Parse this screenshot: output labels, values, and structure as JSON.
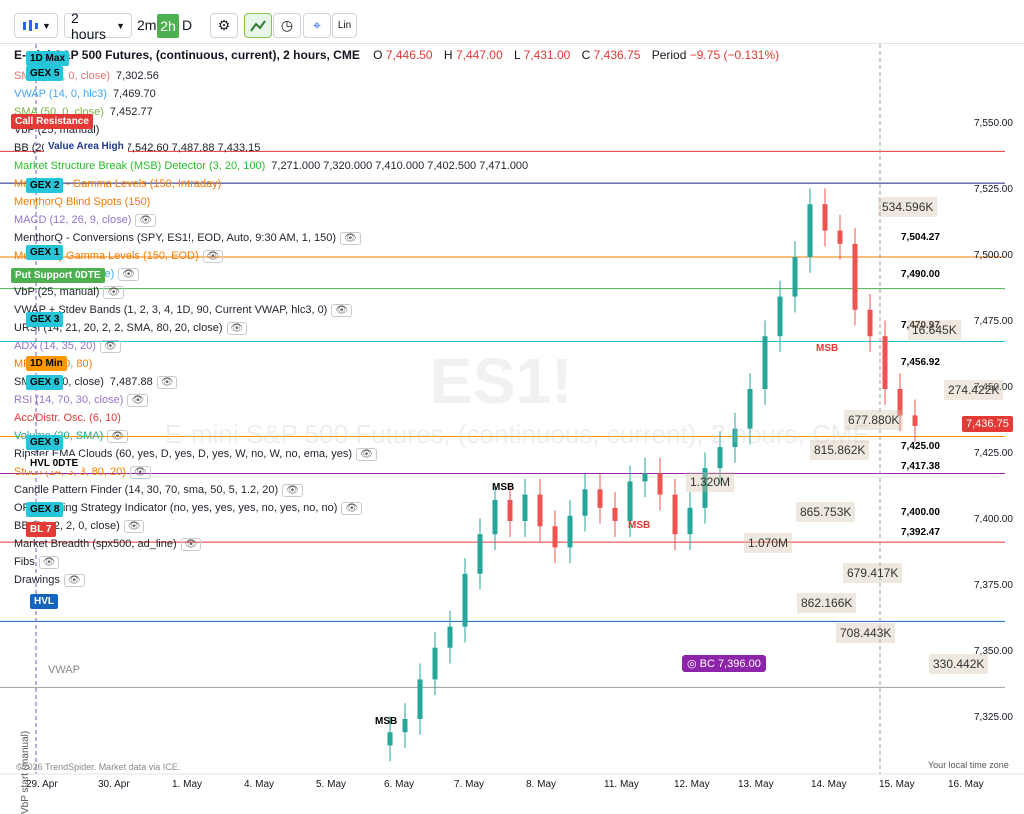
{
  "toolbar": {
    "timeframe": "2 hours",
    "tf_2m": "2m",
    "tf_2h": "2h",
    "tf_d": "D",
    "log_label": "Lin"
  },
  "header": {
    "title": "E-mini S&P 500 Futures, (continuous, current), 2 hours, CME",
    "o_label": "O",
    "o": "7,446.50",
    "h_label": "H",
    "h": "7,447.00",
    "l_label": "L",
    "l": "7,431.00",
    "c_label": "C",
    "c": "7,436.75",
    "period_label": "Period",
    "period": "−9.75 (−0.131%)"
  },
  "indicators": [
    {
      "name": "SMA (200, 0, close)",
      "value": "7,302.56",
      "color": "#e57373"
    },
    {
      "name": "VWAP (14, 0, hlc3)",
      "value": "7,469.70",
      "color": "#42a5f5"
    },
    {
      "name": "SMA (50, 0, close)",
      "value": "7,452.77",
      "color": "#7cb342"
    },
    {
      "name": "VbP (25, manual)",
      "value": "",
      "color": "#1e222d"
    },
    {
      "name": "BB (20, 2, 2, 0, close)",
      "value": "7,542.60  7,487.88  7,433.15",
      "color": "#1e222d"
    },
    {
      "name": "Market Structure Break (MSB) Detector (3, 20, 100)",
      "value": "7,271.000  7,320.000  7,410.000  7,402.500  7,471.000",
      "color": "#2bbd2b"
    },
    {
      "name": "MenthorQ - Gamma Levels (150, Intraday)",
      "value": "",
      "color": "#f57c00"
    },
    {
      "name": "MenthorQ Blind Spots (150)",
      "value": "",
      "color": "#f57c00"
    },
    {
      "name": "MACD (12, 26, 9, close)",
      "value": "",
      "color": "#9575cd"
    },
    {
      "name": "MenthorQ - Conversions (SPY, ES1!, EOD, Auto, 9:30 AM, 1, 150)",
      "value": "",
      "color": "#1e222d"
    },
    {
      "name": "MenthorQ Gamma Levels (150, EOD)",
      "value": "",
      "color": "#f57c00"
    },
    {
      "name": "VWMA (20, 0, close)",
      "value": "",
      "color": "#42a5f5"
    },
    {
      "name": "VbP (25, manual)",
      "value": "",
      "color": "#1e222d"
    },
    {
      "name": "VWAP + Stdev Bands (1, 2, 3, 4, 1D, 90, Current VWAP, hlc3, 0)",
      "value": "",
      "color": "#1e222d"
    },
    {
      "name": "URSI (14, 21, 20, 2, 2, SMA, 80, 20, close)",
      "value": "",
      "color": "#1e222d"
    },
    {
      "name": "ADX (14, 35, 20)",
      "value": "",
      "color": "#9575cd"
    },
    {
      "name": "MFI (14, 20, 80)",
      "value": "",
      "color": "#f57c00"
    },
    {
      "name": "SMA (20, 0, close)",
      "value": "7,487.88",
      "color": "#1e222d"
    },
    {
      "name": "RSI (14, 70, 30, close)",
      "value": "",
      "color": "#9575cd"
    },
    {
      "name": "Acc/Distr. Osc. (6, 10)",
      "value": "",
      "color": "#e53935"
    },
    {
      "name": "Volume (20, SMA)",
      "value": "",
      "color": "#26a69a"
    },
    {
      "name": "Ripster EMA Clouds (60, yes, D, yes, D, yes, W, no, W, no, ema, yes)",
      "value": "",
      "color": "#1e222d"
    },
    {
      "name": "Stoch (14, 3, 3, 80, 20)",
      "value": "",
      "color": "#f57c00"
    },
    {
      "name": "Candle Pattern Finder (14, 30, 70, sma, 50, 5, 1.2, 20)",
      "value": "",
      "color": "#1e222d"
    },
    {
      "name": "ORB Trading Strategy Indicator (no, yes, yes, yes, no, yes, no, no)",
      "value": "",
      "color": "#1e222d"
    },
    {
      "name": "BB (20, 2, 2, 0, close)",
      "value": "",
      "color": "#1e222d"
    },
    {
      "name": "Market Breadth (spx500, ad_line)",
      "value": "",
      "color": "#1e222d"
    },
    {
      "name": "Fibs",
      "value": "",
      "color": "#1e222d"
    },
    {
      "name": "Drawings",
      "value": "",
      "color": "#1e222d"
    }
  ],
  "tags": [
    {
      "text": "1D Max",
      "bg": "#26c6da"
    },
    {
      "text": "GEX 5",
      "bg": "#26c6da"
    },
    {
      "text": "Call Resistance",
      "bg": "#e53935",
      "fg": "#fff"
    },
    {
      "text": "Value Area High",
      "bg": "#ffffff",
      "fg": "#1e3a8a"
    },
    {
      "text": "GEX 2",
      "bg": "#26c6da"
    },
    {
      "text": "GEX 1",
      "bg": "#26c6da"
    },
    {
      "text": "Put Support 0DTE",
      "bg": "#4caf50",
      "fg": "#fff"
    },
    {
      "text": "GEX 3",
      "bg": "#26c6da"
    },
    {
      "text": "1D Min",
      "bg": "#ff9800"
    },
    {
      "text": "GEX 6",
      "bg": "#26c6da"
    },
    {
      "text": "GEX 9",
      "bg": "#26c6da"
    },
    {
      "text": "HVL 0DTE",
      "bg": "#ffffff"
    },
    {
      "text": "GEX 8",
      "bg": "#26c6da"
    },
    {
      "text": "BL 7",
      "bg": "#e53935",
      "fg": "#fff"
    },
    {
      "text": "HVL",
      "bg": "#1565c0",
      "fg": "#fff"
    }
  ],
  "price_axis": [
    "7,550.00",
    "7,525.00",
    "7,500.00",
    "7,475.00",
    "7,450.00",
    "7,425.00",
    "7,400.00",
    "7,375.00",
    "7,350.00",
    "7,325.00"
  ],
  "level_labels": [
    "7,504.27",
    "7,490.00",
    "7,470.97",
    "7,456.92",
    "7,425.00",
    "7,417.38",
    "7,400.00",
    "7,392.47"
  ],
  "current_price": "7,436.75",
  "volume_profile": [
    "534.596K",
    "16.645K",
    "274.422K",
    "677.880K",
    "815.862K",
    "1.320M",
    "865.753K",
    "1.070M",
    "679.417K",
    "862.166K",
    "708.443K",
    "330.442K"
  ],
  "x_axis": [
    "29. Apr",
    "30. Apr",
    "1. May",
    "4. May",
    "5. May",
    "6. May",
    "7. May",
    "8. May",
    "11. May",
    "12. May",
    "13. May",
    "14. May",
    "15. May",
    "16. May"
  ],
  "annotations": {
    "msb": "MSB",
    "bc": "BC 7,396.00",
    "vwap": "VWAP",
    "vbp_start": "VbP start (manual)",
    "watermark_symbol": "ES1!",
    "watermark_name": "E-mini S&P 500 Futures, (continuous, current), 2 hours, CME"
  },
  "footer": {
    "copyright": "©2026 TrendSpider. Market data via ICE.",
    "timezone": "Your local time zone"
  }
}
